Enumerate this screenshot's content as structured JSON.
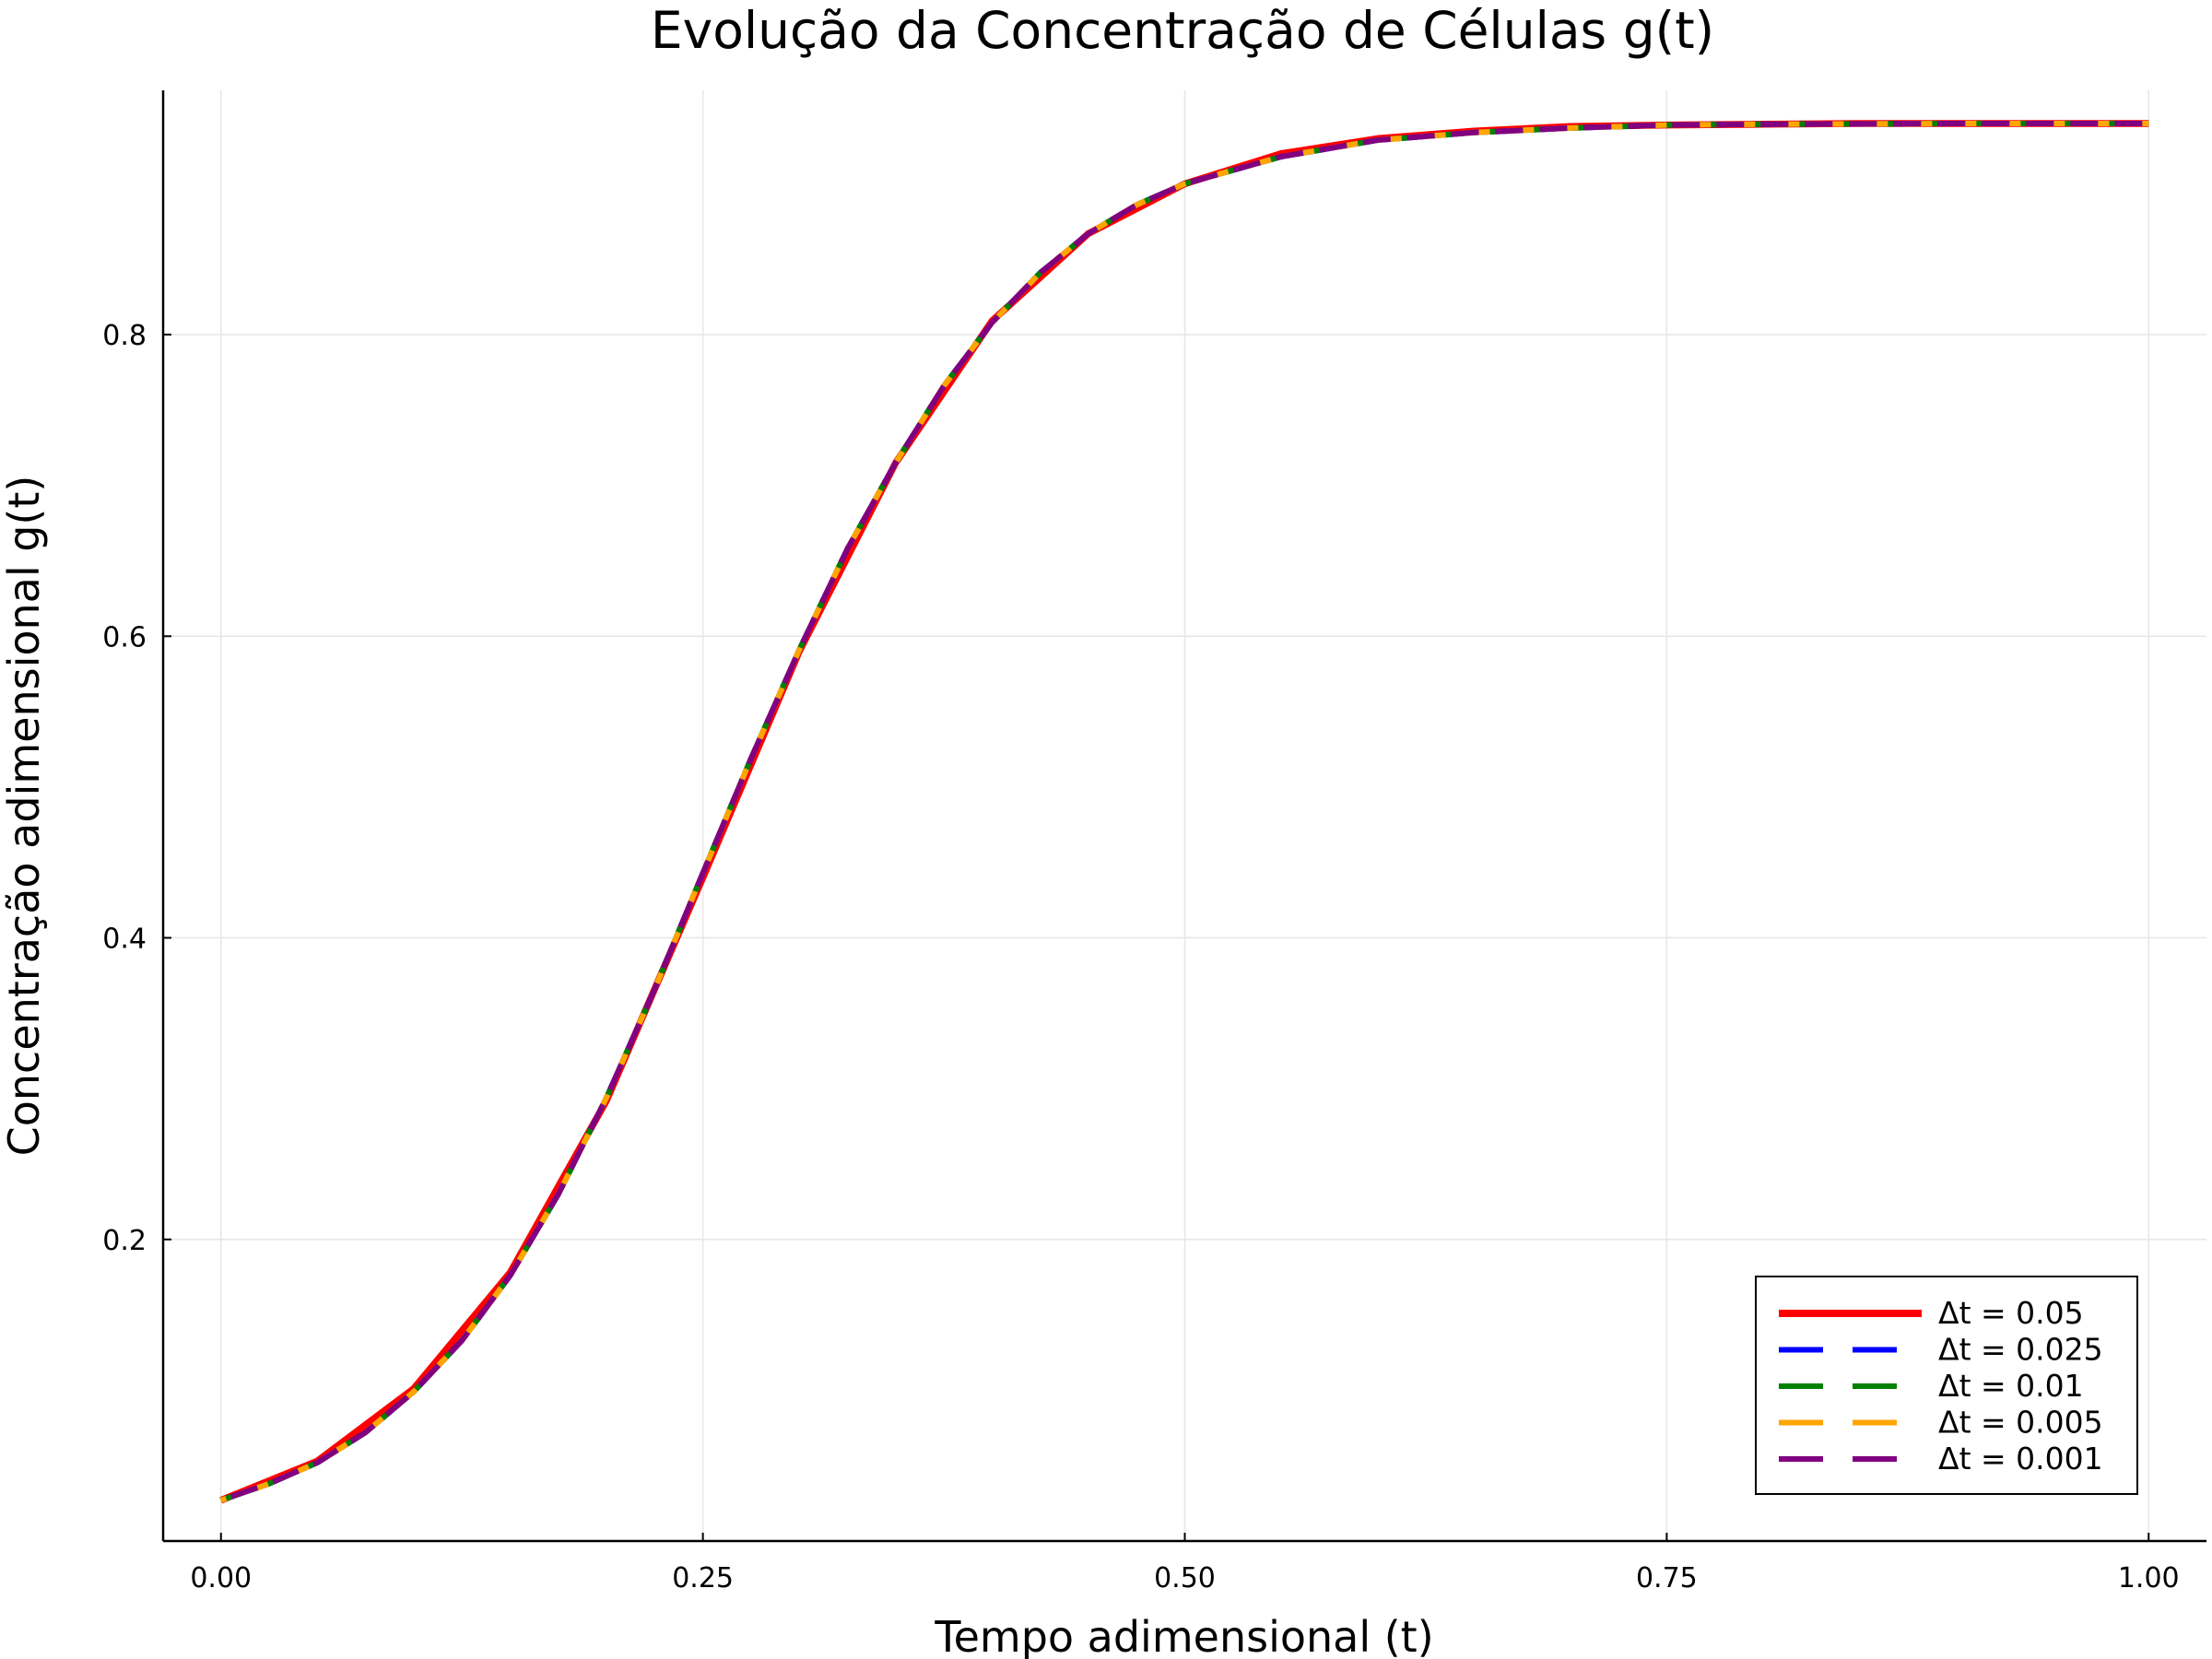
{
  "chart_data": {
    "type": "line",
    "title": "Evolução da Concentração de Células g(t)",
    "xlabel": "Tempo adimensional (t)",
    "ylabel": "Concentração adimensional g(t)",
    "xlim": [
      -0.03,
      1.03
    ],
    "ylim": [
      0.0,
      0.962
    ],
    "xticks": [
      0.0,
      0.25,
      0.5,
      0.75,
      1.0
    ],
    "xtick_labels": [
      "0.00",
      "0.25",
      "0.50",
      "0.75",
      "1.00"
    ],
    "yticks": [
      0.2,
      0.4,
      0.6,
      0.8
    ],
    "ytick_labels": [
      "0.2",
      "0.4",
      "0.6",
      "0.8"
    ],
    "grid": true,
    "legend_position": "bottom-right",
    "series": [
      {
        "name": "Δt = 0.05",
        "color": "#ff0000",
        "style": "solid",
        "x": [
          0,
          0.05,
          0.1,
          0.15,
          0.2,
          0.25,
          0.3,
          0.35,
          0.4,
          0.45,
          0.5,
          0.55,
          0.6,
          0.65,
          0.7,
          0.75,
          0.8,
          0.85,
          0.9,
          0.95,
          1.0
        ],
        "y": [
          0.027,
          0.053,
          0.101,
          0.178,
          0.292,
          0.44,
          0.59,
          0.715,
          0.809,
          0.867,
          0.9,
          0.92,
          0.93,
          0.935,
          0.938,
          0.939,
          0.9395,
          0.94,
          0.94,
          0.94,
          0.94
        ]
      },
      {
        "name": "Δt = 0.025",
        "color": "#0000ff",
        "style": "dashed",
        "x": [
          0,
          0.025,
          0.05,
          0.075,
          0.1,
          0.125,
          0.15,
          0.175,
          0.2,
          0.225,
          0.25,
          0.275,
          0.3,
          0.325,
          0.35,
          0.375,
          0.4,
          0.425,
          0.45,
          0.475,
          0.5,
          0.55,
          0.6,
          0.65,
          0.7,
          0.75,
          0.8,
          0.9,
          1.0
        ],
        "y": [
          0.027,
          0.038,
          0.052,
          0.072,
          0.099,
          0.133,
          0.176,
          0.23,
          0.294,
          0.366,
          0.443,
          0.519,
          0.591,
          0.658,
          0.715,
          0.766,
          0.808,
          0.841,
          0.867,
          0.886,
          0.9,
          0.918,
          0.929,
          0.934,
          0.937,
          0.939,
          0.9395,
          0.94,
          0.94
        ]
      },
      {
        "name": "Δt = 0.01",
        "color": "#008000",
        "style": "dashed",
        "x": [
          0,
          0.025,
          0.05,
          0.075,
          0.1,
          0.125,
          0.15,
          0.175,
          0.2,
          0.225,
          0.25,
          0.275,
          0.3,
          0.325,
          0.35,
          0.375,
          0.4,
          0.425,
          0.45,
          0.475,
          0.5,
          0.55,
          0.6,
          0.65,
          0.7,
          0.75,
          0.8,
          0.9,
          1.0
        ],
        "y": [
          0.027,
          0.038,
          0.052,
          0.072,
          0.099,
          0.133,
          0.176,
          0.23,
          0.294,
          0.366,
          0.443,
          0.519,
          0.591,
          0.658,
          0.715,
          0.766,
          0.808,
          0.841,
          0.867,
          0.886,
          0.9,
          0.918,
          0.929,
          0.934,
          0.937,
          0.939,
          0.9395,
          0.94,
          0.94
        ]
      },
      {
        "name": "Δt = 0.005",
        "color": "#ffa500",
        "style": "dashed",
        "x": [
          0,
          0.025,
          0.05,
          0.075,
          0.1,
          0.125,
          0.15,
          0.175,
          0.2,
          0.225,
          0.25,
          0.275,
          0.3,
          0.325,
          0.35,
          0.375,
          0.4,
          0.425,
          0.45,
          0.475,
          0.5,
          0.55,
          0.6,
          0.65,
          0.7,
          0.75,
          0.8,
          0.9,
          1.0
        ],
        "y": [
          0.027,
          0.038,
          0.052,
          0.072,
          0.099,
          0.133,
          0.176,
          0.23,
          0.294,
          0.366,
          0.443,
          0.519,
          0.591,
          0.658,
          0.715,
          0.766,
          0.808,
          0.841,
          0.867,
          0.886,
          0.9,
          0.918,
          0.929,
          0.934,
          0.937,
          0.939,
          0.9395,
          0.94,
          0.94
        ]
      },
      {
        "name": "Δt = 0.001",
        "color": "#800080",
        "style": "dashed",
        "x": [
          0,
          0.025,
          0.05,
          0.075,
          0.1,
          0.125,
          0.15,
          0.175,
          0.2,
          0.225,
          0.25,
          0.275,
          0.3,
          0.325,
          0.35,
          0.375,
          0.4,
          0.425,
          0.45,
          0.475,
          0.5,
          0.55,
          0.6,
          0.65,
          0.7,
          0.75,
          0.8,
          0.9,
          1.0
        ],
        "y": [
          0.027,
          0.038,
          0.052,
          0.072,
          0.099,
          0.133,
          0.176,
          0.23,
          0.294,
          0.366,
          0.443,
          0.519,
          0.591,
          0.658,
          0.715,
          0.766,
          0.808,
          0.841,
          0.867,
          0.886,
          0.9,
          0.918,
          0.929,
          0.934,
          0.937,
          0.939,
          0.9395,
          0.94,
          0.94
        ]
      }
    ]
  }
}
